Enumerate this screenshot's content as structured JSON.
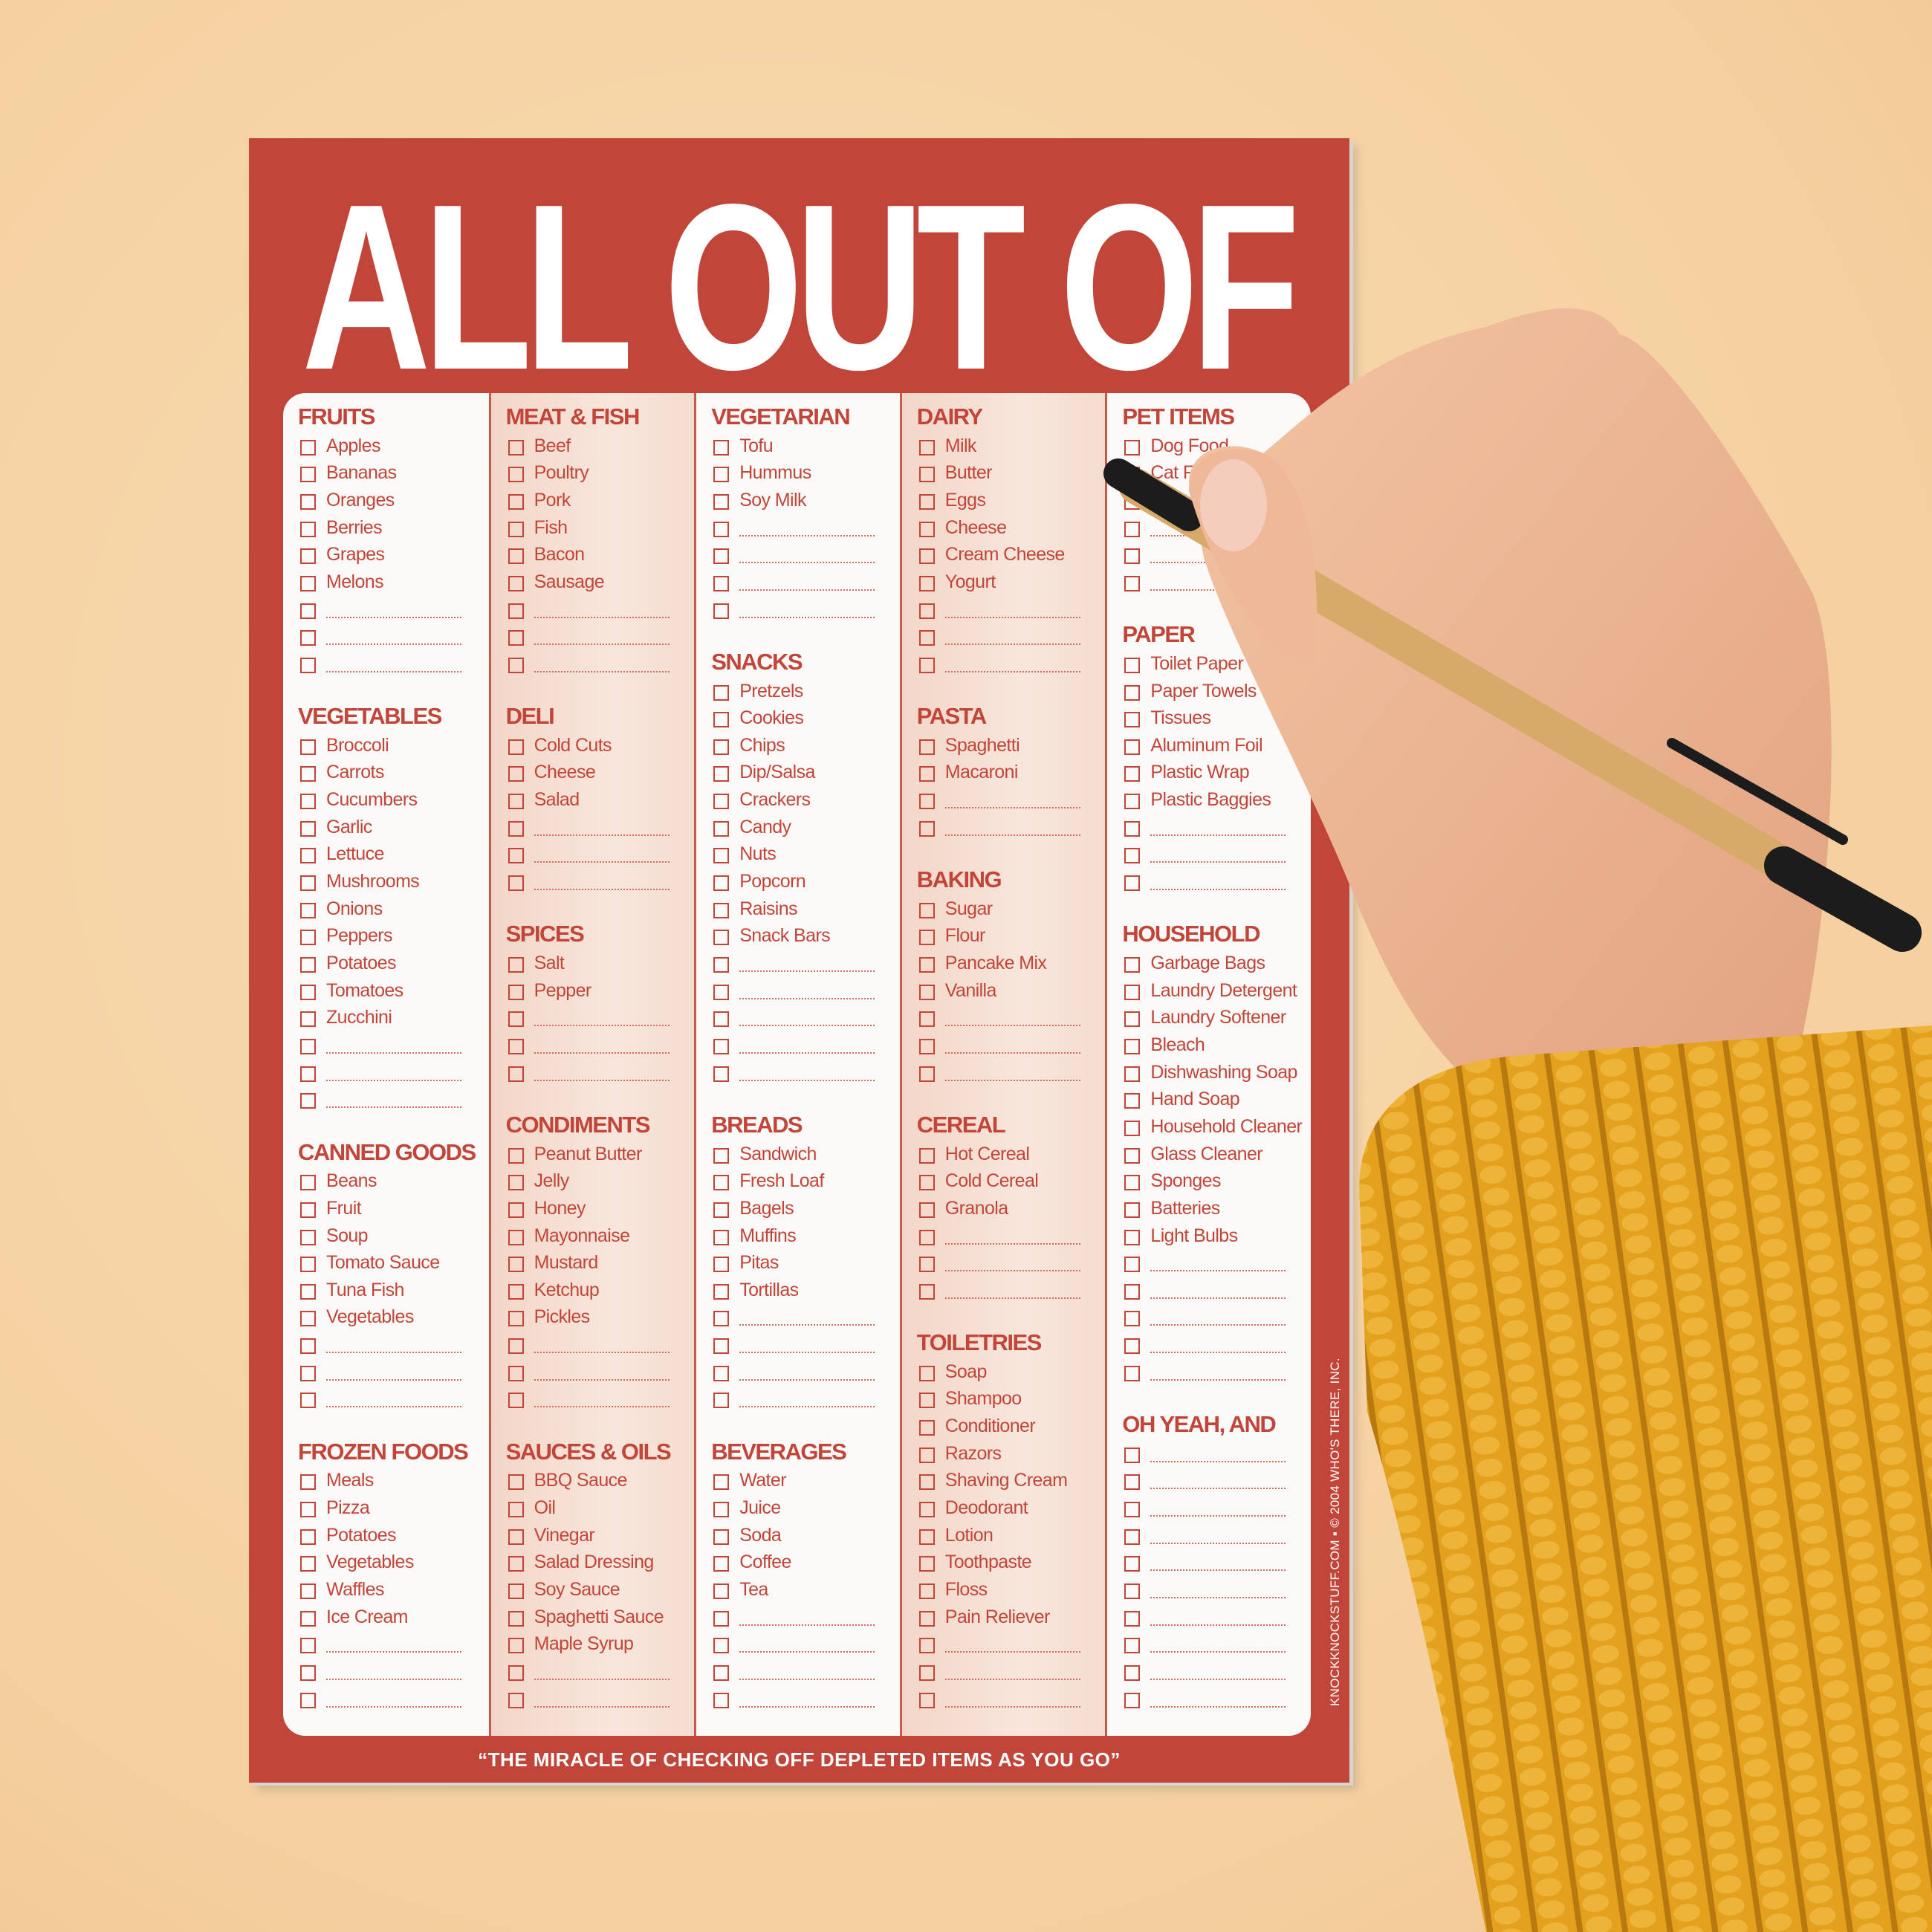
{
  "pad": {
    "title": "ALL OUT OF",
    "footer": "“THE MIRACLE OF CHECKING OFF DEPLETED ITEMS AS YOU GO”",
    "copyright": "KNOCKKNOCKSTUFF.COM ▪ © 2004 WHO'S THERE, INC.",
    "colors": {
      "red": "#c2453a",
      "background": "#f5d0a0",
      "paper": "#fbfaf8",
      "sweater": "#e3a11d"
    },
    "columns": [
      {
        "sections": [
          {
            "title": "FRUITS",
            "items": [
              "Apples",
              "Bananas",
              "Oranges",
              "Berries",
              "Grapes",
              "Melons",
              "",
              "",
              ""
            ]
          },
          {
            "title": "VEGETABLES",
            "items": [
              "Broccoli",
              "Carrots",
              "Cucumbers",
              "Garlic",
              "Lettuce",
              "Mushrooms",
              "Onions",
              "Peppers",
              "Potatoes",
              "Tomatoes",
              "Zucchini",
              "",
              "",
              ""
            ]
          },
          {
            "title": "CANNED GOODS",
            "items": [
              "Beans",
              "Fruit",
              "Soup",
              "Tomato Sauce",
              "Tuna Fish",
              "Vegetables",
              "",
              "",
              ""
            ]
          },
          {
            "title": "FROZEN FOODS",
            "items": [
              "Meals",
              "Pizza",
              "Potatoes",
              "Vegetables",
              "Waffles",
              "Ice Cream",
              "",
              "",
              ""
            ]
          }
        ]
      },
      {
        "sections": [
          {
            "title": "MEAT & FISH",
            "items": [
              "Beef",
              "Poultry",
              "Pork",
              "Fish",
              "Bacon",
              "Sausage",
              "",
              "",
              ""
            ]
          },
          {
            "title": "DELI",
            "items": [
              "Cold Cuts",
              "Cheese",
              "Salad",
              "",
              "",
              ""
            ]
          },
          {
            "title": "SPICES",
            "items": [
              "Salt",
              "Pepper",
              "",
              "",
              ""
            ]
          },
          {
            "title": "CONDIMENTS",
            "items": [
              "Peanut Butter",
              "Jelly",
              "Honey",
              "Mayonnaise",
              "Mustard",
              "Ketchup",
              "Pickles",
              "",
              "",
              ""
            ]
          },
          {
            "title": "SAUCES & OILS",
            "items": [
              "BBQ Sauce",
              "Oil",
              "Vinegar",
              "Salad Dressing",
              "Soy Sauce",
              "Spaghetti Sauce",
              "Maple Syrup",
              "",
              ""
            ]
          }
        ]
      },
      {
        "sections": [
          {
            "title": "VEGETARIAN",
            "items": [
              "Tofu",
              "Hummus",
              "Soy Milk",
              "",
              "",
              "",
              ""
            ]
          },
          {
            "title": "SNACKS",
            "items": [
              "Pretzels",
              "Cookies",
              "Chips",
              "Dip/Salsa",
              "Crackers",
              "Candy",
              "Nuts",
              "Popcorn",
              "Raisins",
              "Snack Bars",
              "",
              "",
              "",
              "",
              ""
            ]
          },
          {
            "title": "BREADS",
            "items": [
              "Sandwich",
              "Fresh Loaf",
              "Bagels",
              "Muffins",
              "Pitas",
              "Tortillas",
              "",
              "",
              "",
              ""
            ]
          },
          {
            "title": "BEVERAGES",
            "items": [
              "Water",
              "Juice",
              "Soda",
              "Coffee",
              "Tea",
              "",
              "",
              "",
              ""
            ]
          }
        ]
      },
      {
        "sections": [
          {
            "title": "DAIRY",
            "items": [
              "Milk",
              "Butter",
              "Eggs",
              "Cheese",
              "Cream Cheese",
              "Yogurt",
              "",
              "",
              ""
            ]
          },
          {
            "title": "PASTA",
            "items": [
              "Spaghetti",
              "Macaroni",
              "",
              ""
            ]
          },
          {
            "title": "BAKING",
            "items": [
              "Sugar",
              "Flour",
              "Pancake Mix",
              "Vanilla",
              "",
              "",
              ""
            ]
          },
          {
            "title": "CEREAL",
            "items": [
              "Hot Cereal",
              "Cold Cereal",
              "Granola",
              "",
              "",
              ""
            ]
          },
          {
            "title": "TOILETRIES",
            "items": [
              "Soap",
              "Shampoo",
              "Conditioner",
              "Razors",
              "Shaving Cream",
              "Deodorant",
              "Lotion",
              "Toothpaste",
              "Floss",
              "Pain Reliever",
              "",
              "",
              ""
            ]
          }
        ]
      },
      {
        "sections": [
          {
            "title": "PET ITEMS",
            "items": [
              "Dog Food",
              "Cat Food",
              "",
              "",
              "",
              ""
            ]
          },
          {
            "title": "PAPER",
            "items": [
              "Toilet Paper",
              "Paper Towels",
              "Tissues",
              "Aluminum Foil",
              "Plastic Wrap",
              "Plastic Baggies",
              "",
              "",
              ""
            ]
          },
          {
            "title": "HOUSEHOLD",
            "items": [
              "Garbage Bags",
              "Laundry Detergent",
              "Laundry Softener",
              "Bleach",
              "Dishwashing Soap",
              "Hand Soap",
              "Household Cleaner",
              "Glass Cleaner",
              "Sponges",
              "Batteries",
              "Light Bulbs",
              "",
              "",
              "",
              "",
              ""
            ]
          },
          {
            "title": "OH YEAH, AND",
            "items": [
              "",
              "",
              "",
              "",
              "",
              "",
              "",
              "",
              "",
              ""
            ]
          }
        ]
      }
    ]
  }
}
